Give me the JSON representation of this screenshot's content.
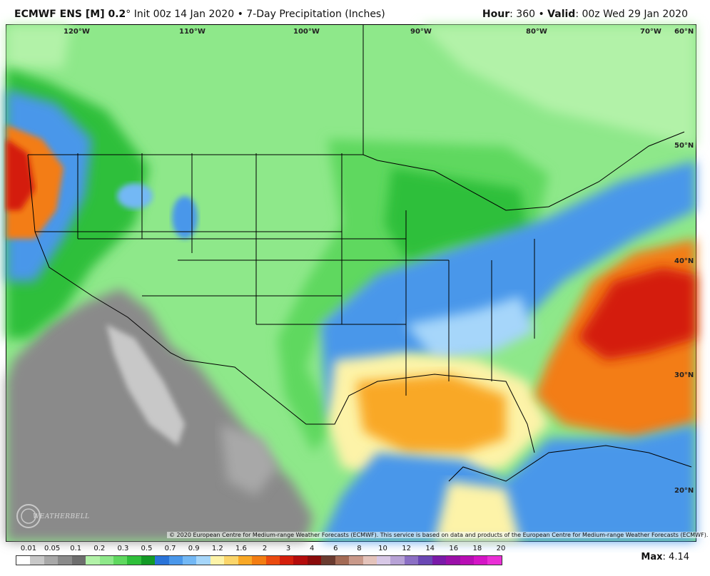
{
  "header": {
    "model": "ECMWF ENS [M] 0.2",
    "degree": "°",
    "init": " Init 00z 14 Jan 2020 • 7-Day Precipitation (Inches)",
    "hour_label": "Hour",
    "hour_value": ": 360 • ",
    "valid_label": "Valid",
    "valid_value": ": 00z Wed 29 Jan 2020"
  },
  "map": {
    "lon_labels": [
      "120°W",
      "110°W",
      "100°W",
      "90°W",
      "80°W",
      "70°W",
      "60°N"
    ],
    "lat_labels": [
      "50°N",
      "40°N",
      "30°N",
      "20°N"
    ],
    "copyright": "© 2020 European Centre for Medium-range Weather Forecasts (ECMWF). This service is based on data and products of the European Centre for Medium-range Weather Forecasts (ECMWF).",
    "logo_text": "WEATHERBELL"
  },
  "legend": {
    "ticks": [
      "0.01",
      "0.05",
      "0.1",
      "0.2",
      "0.3",
      "0.5",
      "0.7",
      "0.9",
      "1.2",
      "1.6",
      "2",
      "3",
      "4",
      "6",
      "8",
      "10",
      "12",
      "14",
      "16",
      "18",
      "20"
    ],
    "colors": [
      "#ffffff",
      "#c8c8c8",
      "#a8a8a8",
      "#8a8a8a",
      "#6e6e6e",
      "#b2f2a8",
      "#8ee88a",
      "#5fd85f",
      "#2fbf3a",
      "#139a26",
      "#2a73d8",
      "#4a97ea",
      "#73b8f5",
      "#a6d6fa",
      "#fdf3a8",
      "#fbd56a",
      "#f9a826",
      "#f37d12",
      "#ea4a0f",
      "#d41f0c",
      "#b40c0c",
      "#8a0b0b",
      "#6a3b30",
      "#a36a55",
      "#c9998a",
      "#e4c3bb",
      "#d8c8e6",
      "#b7a2d6",
      "#8b6fc4",
      "#6a47b4",
      "#7a1aa8",
      "#9a10a8",
      "#b80eb4",
      "#d415c6",
      "#ea2fd6"
    ],
    "max_label": "Max",
    "max_value": ": 4.14"
  }
}
